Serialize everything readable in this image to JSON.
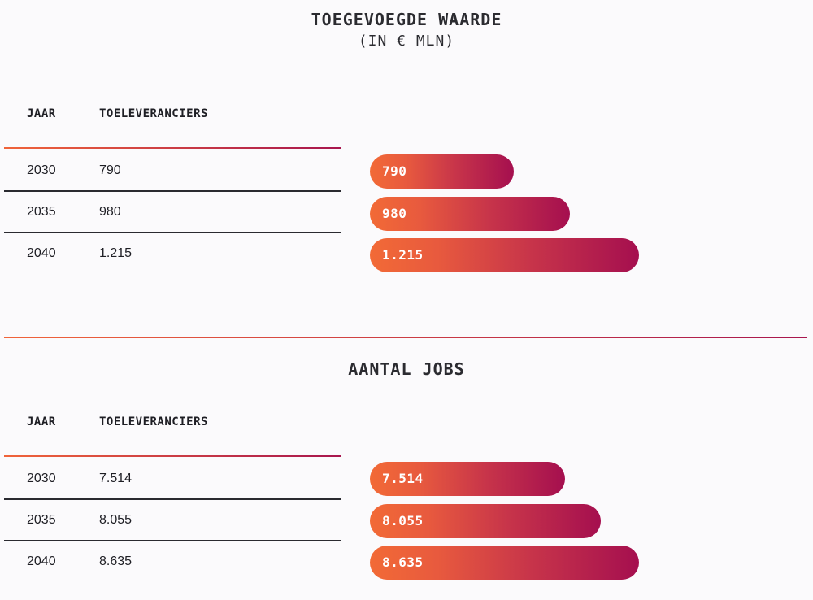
{
  "chart_data": [
    {
      "type": "bar",
      "title": "TOEGEVOEGDE WAARDE",
      "subtitle": "(IN € MLN)",
      "columns": [
        "JAAR",
        "TOELEVERANCIERS"
      ],
      "categories": [
        "2030",
        "2035",
        "2040"
      ],
      "values": [
        790,
        980,
        1215
      ],
      "value_labels": [
        "790",
        "980",
        "1.215"
      ],
      "orientation": "horizontal",
      "colors": {
        "start": "#f26a36",
        "end": "#a50f4f"
      }
    },
    {
      "type": "bar",
      "title": "AANTAL JOBS",
      "columns": [
        "JAAR",
        "TOELEVERANCIERS"
      ],
      "categories": [
        "2030",
        "2035",
        "2040"
      ],
      "values": [
        7514,
        8055,
        8635
      ],
      "value_labels": [
        "7.514",
        "8.055",
        "8.635"
      ],
      "orientation": "horizontal",
      "colors": {
        "start": "#f26a36",
        "end": "#a50f4f"
      }
    }
  ]
}
